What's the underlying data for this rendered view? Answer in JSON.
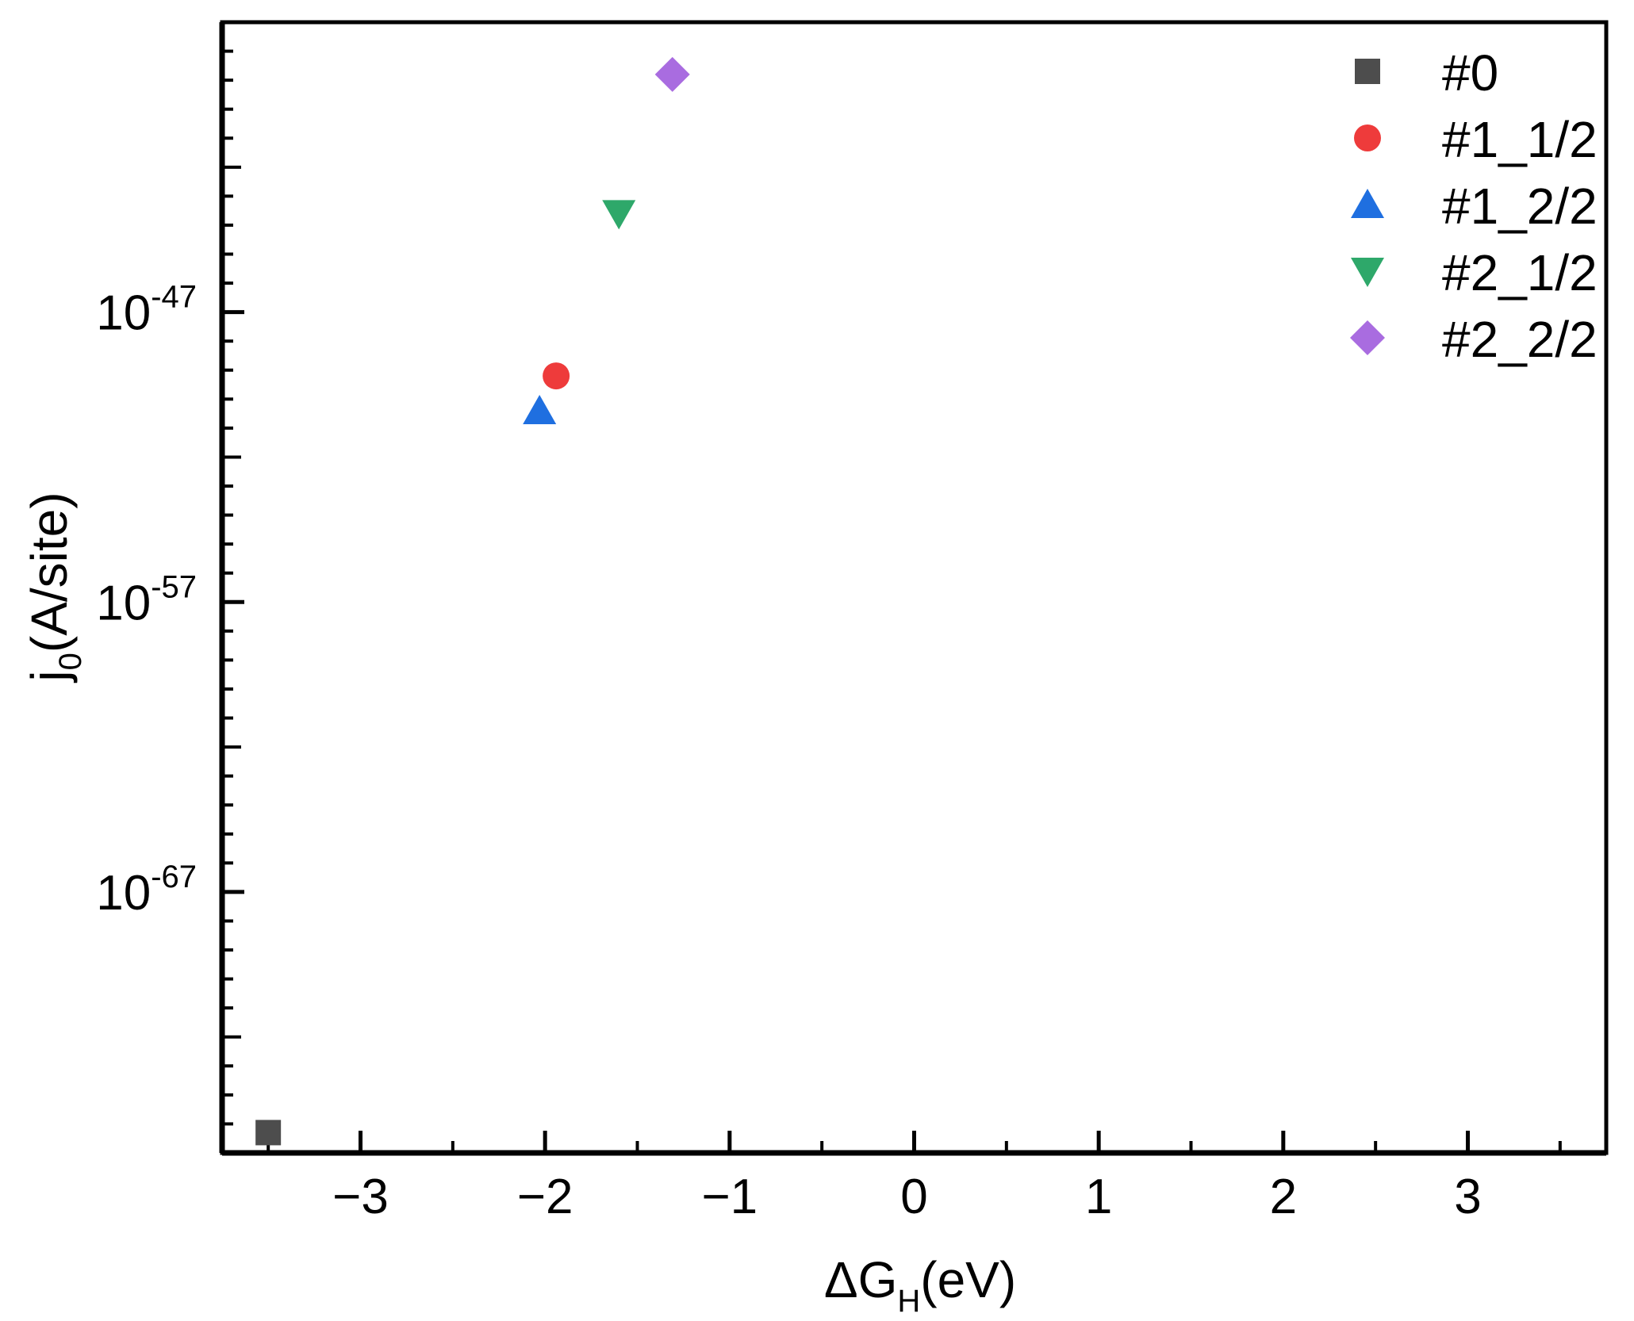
{
  "chart_data": {
    "type": "scatter",
    "xlabel": {
      "main": "ΔG",
      "sub": "H",
      "unit": "(eV)"
    },
    "ylabel": {
      "main": "j",
      "sub": "0",
      "unit": "(A/site)"
    },
    "xlim": [
      -3.75,
      3.75
    ],
    "ylim_log10": [
      -76,
      -37
    ],
    "yscale": "log",
    "x_ticks": [
      {
        "value": -3,
        "label": "−3"
      },
      {
        "value": -2,
        "label": "−2"
      },
      {
        "value": -1,
        "label": "−1"
      },
      {
        "value": 0,
        "label": "0"
      },
      {
        "value": 1,
        "label": "1"
      },
      {
        "value": 2,
        "label": "2"
      },
      {
        "value": 3,
        "label": "3"
      }
    ],
    "y_ticks": [
      {
        "exponent": -47,
        "base": "10",
        "exp_label": "-47"
      },
      {
        "exponent": -57,
        "base": "10",
        "exp_label": "-57"
      },
      {
        "exponent": -67,
        "base": "10",
        "exp_label": "-67"
      }
    ],
    "legend_position": "top-right",
    "grid": false,
    "series": [
      {
        "name": "#0",
        "marker": "square",
        "color": "#4d4d4d",
        "points": [
          {
            "x": -3.5,
            "log10_y": -75.3
          }
        ]
      },
      {
        "name": "#1_1/2",
        "marker": "circle",
        "color": "#ee3b3b",
        "points": [
          {
            "x": -1.94,
            "log10_y": -49.2
          }
        ]
      },
      {
        "name": "#1_2/2",
        "marker": "triangle-up",
        "color": "#1f6fe0",
        "points": [
          {
            "x": -2.03,
            "log10_y": -50.4
          }
        ]
      },
      {
        "name": "#2_1/2",
        "marker": "triangle-down",
        "color": "#2ea86a",
        "points": [
          {
            "x": -1.6,
            "log10_y": -43.6
          }
        ]
      },
      {
        "name": "#2_2/2",
        "marker": "diamond",
        "color": "#a96ce0",
        "points": [
          {
            "x": -1.31,
            "log10_y": -38.8
          }
        ]
      }
    ]
  }
}
